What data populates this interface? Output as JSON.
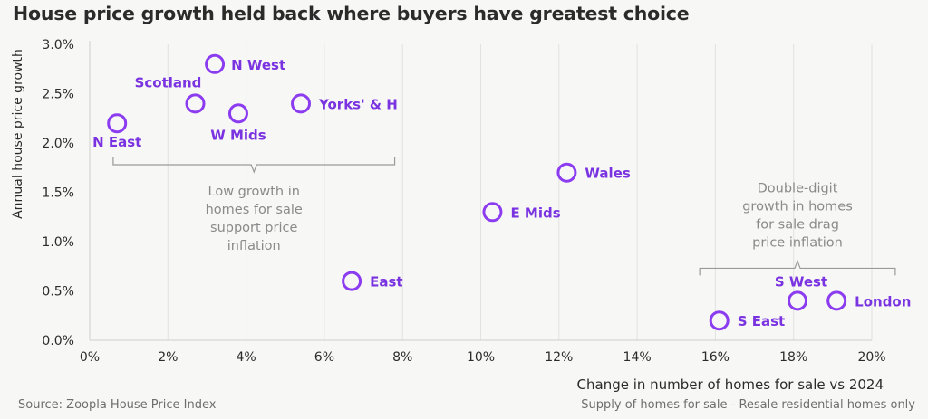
{
  "chart_data": {
    "type": "scatter",
    "title": "House price growth held back where buyers have greatest choice",
    "xlabel": "Change in number of homes for sale vs 2024",
    "ylabel": "Annual house price growth",
    "xlim": [
      0,
      20
    ],
    "ylim": [
      0,
      3.0
    ],
    "x_ticks": [
      "0%",
      "2%",
      "4%",
      "6%",
      "8%",
      "10%",
      "12%",
      "14%",
      "16%",
      "18%",
      "20%"
    ],
    "y_ticks": [
      "0.0%",
      "0.5%",
      "1.0%",
      "1.5%",
      "2.0%",
      "2.5%",
      "3.0%"
    ],
    "grid": "vertical",
    "marker_color": "#8c3cf0",
    "points": [
      {
        "label": "N East",
        "x": 0.7,
        "y": 2.2
      },
      {
        "label": "Scotland",
        "x": 2.7,
        "y": 2.4
      },
      {
        "label": "N West",
        "x": 3.2,
        "y": 2.8
      },
      {
        "label": "W Mids",
        "x": 3.8,
        "y": 2.3
      },
      {
        "label": "Yorks' & H",
        "x": 5.4,
        "y": 2.4
      },
      {
        "label": "East",
        "x": 6.7,
        "y": 0.6
      },
      {
        "label": "E Mids",
        "x": 10.3,
        "y": 1.3
      },
      {
        "label": "Wales",
        "x": 12.2,
        "y": 1.7
      },
      {
        "label": "S East",
        "x": 16.1,
        "y": 0.2
      },
      {
        "label": "S West",
        "x": 18.1,
        "y": 0.4
      },
      {
        "label": "London",
        "x": 19.1,
        "y": 0.4
      }
    ],
    "annotations": [
      {
        "lines": [
          "Low growth in",
          "homes for sale",
          "support price",
          "inflation"
        ],
        "x_range": [
          0.6,
          7.8
        ],
        "y": 1.78
      },
      {
        "lines": [
          "Double-digit",
          "growth in homes",
          "for sale drag",
          "price inflation"
        ],
        "x_range": [
          15.6,
          20.6
        ],
        "y": 0.73
      }
    ]
  },
  "footer": {
    "source": "Source: Zoopla House Price Index",
    "note": "Supply of homes for sale - Resale residential homes only"
  }
}
